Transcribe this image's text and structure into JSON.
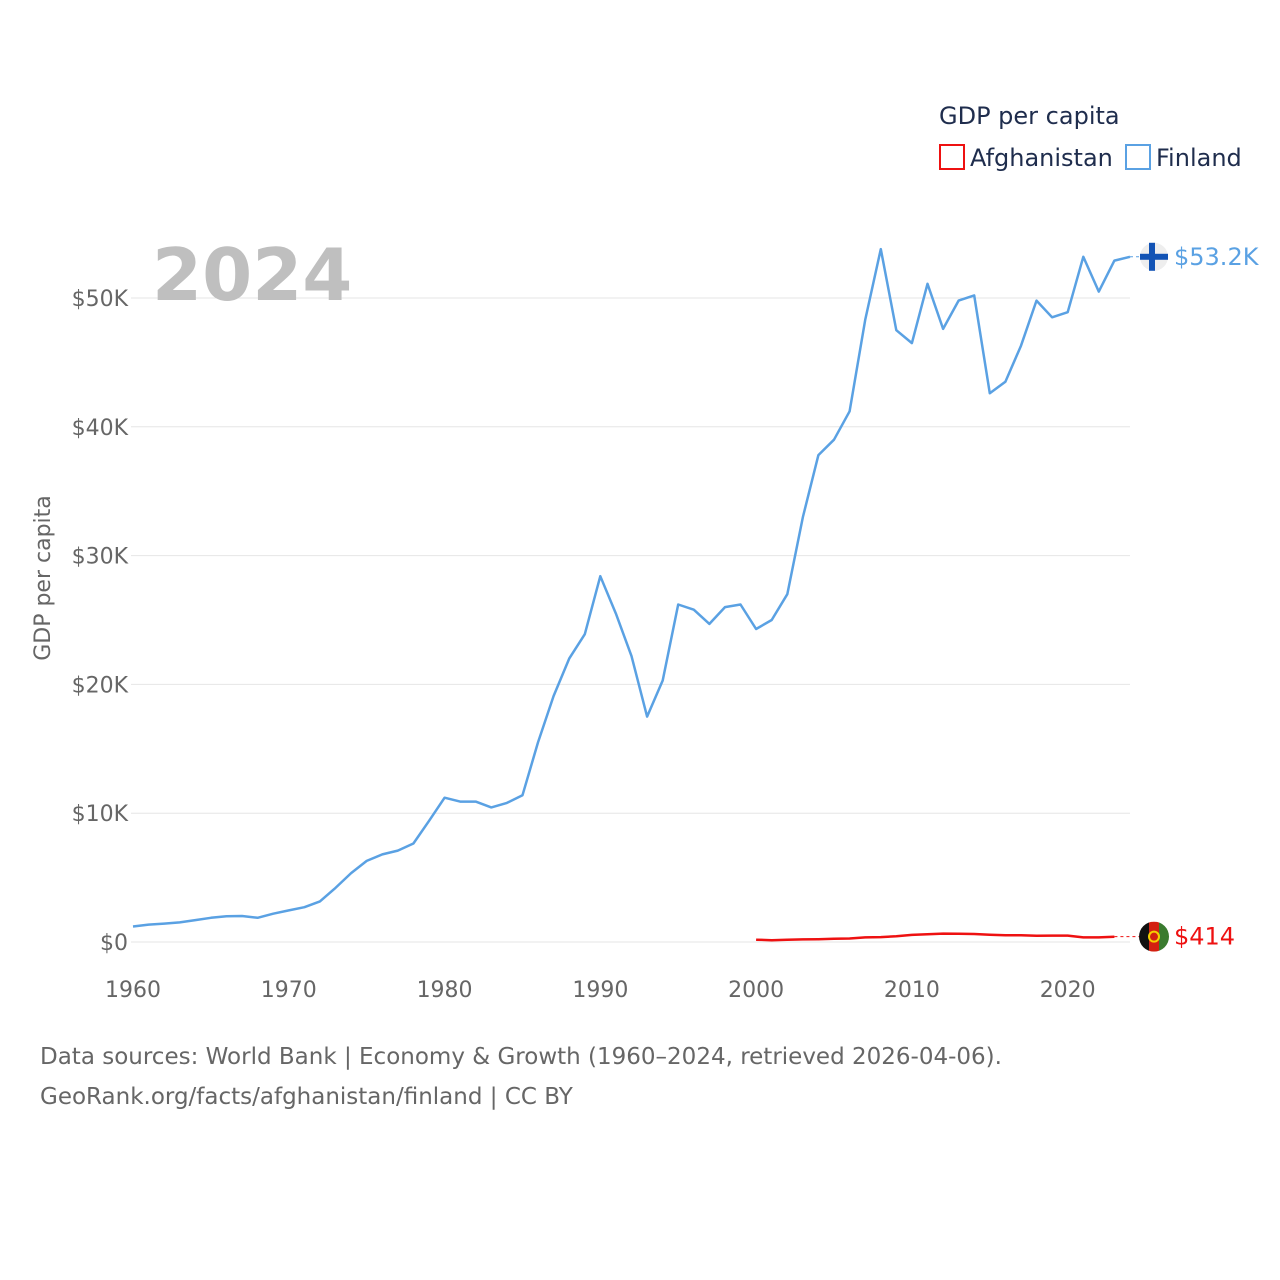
{
  "chart_data": {
    "type": "line",
    "title": "GDP per capita",
    "year_label": "2024",
    "ylabel": "GDP per capita",
    "xlabel": "",
    "xlim": [
      1960,
      2024
    ],
    "ylim": [
      0,
      55000
    ],
    "x_ticks": [
      1960,
      1970,
      1980,
      1990,
      2000,
      2010,
      2020
    ],
    "x_tick_labels": [
      "1960",
      "1970",
      "1980",
      "1990",
      "2000",
      "2010",
      "2020"
    ],
    "y_ticks": [
      0,
      10000,
      20000,
      30000,
      40000,
      50000
    ],
    "y_tick_labels": [
      "$0",
      "$10K",
      "$20K",
      "$30K",
      "$40K",
      "$50K"
    ],
    "grid": true,
    "legend_position": "top-right",
    "legend_title": "GDP per capita",
    "series": [
      {
        "name": "Afghanistan",
        "color": "#ee1111",
        "flag": "afghanistan-flag-icon",
        "end_label": "$414",
        "end_value": 414,
        "points": [
          [
            2000,
            180
          ],
          [
            2001,
            140
          ],
          [
            2002,
            180
          ],
          [
            2003,
            200
          ],
          [
            2004,
            220
          ],
          [
            2005,
            250
          ],
          [
            2006,
            270
          ],
          [
            2007,
            360
          ],
          [
            2008,
            380
          ],
          [
            2009,
            440
          ],
          [
            2010,
            550
          ],
          [
            2011,
            600
          ],
          [
            2012,
            650
          ],
          [
            2013,
            640
          ],
          [
            2014,
            620
          ],
          [
            2015,
            560
          ],
          [
            2016,
            520
          ],
          [
            2017,
            520
          ],
          [
            2018,
            490
          ],
          [
            2019,
            500
          ],
          [
            2020,
            500
          ],
          [
            2021,
            360
          ],
          [
            2022,
            360
          ],
          [
            2023,
            414
          ]
        ]
      },
      {
        "name": "Finland",
        "color": "#5aa1e3",
        "flag": "finland-flag-icon",
        "end_label": "$53.2K",
        "end_value": 53200,
        "points": [
          [
            1960,
            1200
          ],
          [
            1961,
            1350
          ],
          [
            1962,
            1430
          ],
          [
            1963,
            1520
          ],
          [
            1964,
            1700
          ],
          [
            1965,
            1880
          ],
          [
            1966,
            2000
          ],
          [
            1967,
            2020
          ],
          [
            1968,
            1880
          ],
          [
            1969,
            2200
          ],
          [
            1970,
            2450
          ],
          [
            1971,
            2700
          ],
          [
            1972,
            3150
          ],
          [
            1973,
            4200
          ],
          [
            1974,
            5350
          ],
          [
            1975,
            6300
          ],
          [
            1976,
            6800
          ],
          [
            1977,
            7100
          ],
          [
            1978,
            7650
          ],
          [
            1979,
            9400
          ],
          [
            1980,
            11200
          ],
          [
            1981,
            10900
          ],
          [
            1982,
            10900
          ],
          [
            1983,
            10450
          ],
          [
            1984,
            10800
          ],
          [
            1985,
            11400
          ],
          [
            1986,
            15500
          ],
          [
            1987,
            19100
          ],
          [
            1988,
            22000
          ],
          [
            1989,
            23900
          ],
          [
            1990,
            28400
          ],
          [
            1991,
            25500
          ],
          [
            1992,
            22200
          ],
          [
            1993,
            17500
          ],
          [
            1994,
            20300
          ],
          [
            1995,
            26200
          ],
          [
            1996,
            25800
          ],
          [
            1997,
            24700
          ],
          [
            1998,
            26000
          ],
          [
            1999,
            26200
          ],
          [
            2000,
            24300
          ],
          [
            2001,
            25000
          ],
          [
            2002,
            27000
          ],
          [
            2003,
            33000
          ],
          [
            2004,
            37800
          ],
          [
            2005,
            39000
          ],
          [
            2006,
            41200
          ],
          [
            2007,
            48300
          ],
          [
            2008,
            53800
          ],
          [
            2009,
            47500
          ],
          [
            2010,
            46500
          ],
          [
            2011,
            51100
          ],
          [
            2012,
            47600
          ],
          [
            2013,
            49800
          ],
          [
            2014,
            50200
          ],
          [
            2015,
            42600
          ],
          [
            2016,
            43500
          ],
          [
            2017,
            46300
          ],
          [
            2018,
            49800
          ],
          [
            2019,
            48500
          ],
          [
            2020,
            48900
          ],
          [
            2021,
            53200
          ],
          [
            2022,
            50500
          ],
          [
            2023,
            52900
          ],
          [
            2024,
            53200
          ]
        ]
      }
    ]
  },
  "footer": {
    "source_line": "Data sources: World Bank | Economy & Growth (1960–2024, retrieved 2026-04-06).",
    "credit_line": "GeoRank.org/facts/afghanistan/finland | CC BY"
  }
}
